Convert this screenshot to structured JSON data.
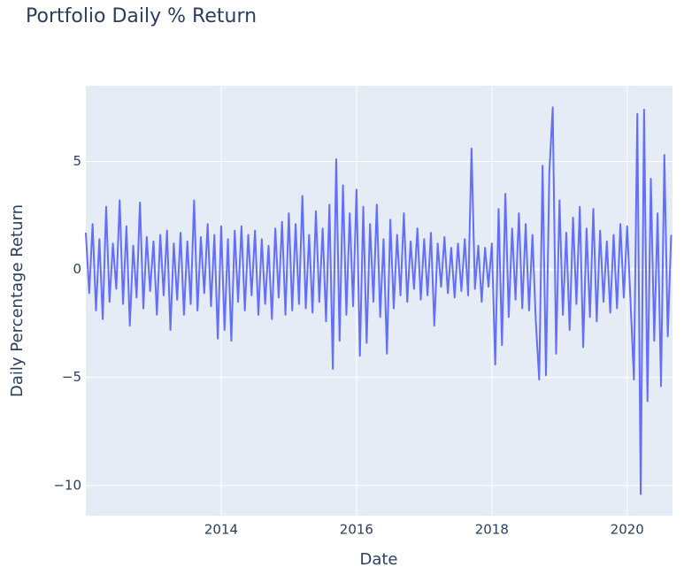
{
  "chart_data": {
    "type": "line",
    "title": "Portfolio Daily % Return",
    "x_label": "Date",
    "y_label": "Daily Percentage Return",
    "x": [
      2012.0,
      2012.05,
      2012.1,
      2012.15,
      2012.2,
      2012.25,
      2012.3,
      2012.35,
      2012.4,
      2012.45,
      2012.5,
      2012.55,
      2012.6,
      2012.65,
      2012.7,
      2012.75,
      2012.8,
      2012.85,
      2012.9,
      2012.95,
      2013.0,
      2013.05,
      2013.1,
      2013.15,
      2013.2,
      2013.25,
      2013.3,
      2013.35,
      2013.4,
      2013.45,
      2013.5,
      2013.55,
      2013.6,
      2013.65,
      2013.7,
      2013.75,
      2013.8,
      2013.85,
      2013.9,
      2013.95,
      2014.0,
      2014.05,
      2014.1,
      2014.15,
      2014.2,
      2014.25,
      2014.3,
      2014.35,
      2014.4,
      2014.45,
      2014.5,
      2014.55,
      2014.6,
      2014.65,
      2014.7,
      2014.75,
      2014.8,
      2014.85,
      2014.9,
      2014.95,
      2015.0,
      2015.05,
      2015.1,
      2015.15,
      2015.2,
      2015.25,
      2015.3,
      2015.35,
      2015.4,
      2015.45,
      2015.5,
      2015.55,
      2015.6,
      2015.65,
      2015.7,
      2015.75,
      2015.8,
      2015.85,
      2015.9,
      2015.95,
      2016.0,
      2016.05,
      2016.1,
      2016.15,
      2016.2,
      2016.25,
      2016.3,
      2016.35,
      2016.4,
      2016.45,
      2016.5,
      2016.55,
      2016.6,
      2016.65,
      2016.7,
      2016.75,
      2016.8,
      2016.85,
      2016.9,
      2016.95,
      2017.0,
      2017.05,
      2017.1,
      2017.15,
      2017.2,
      2017.25,
      2017.3,
      2017.35,
      2017.4,
      2017.45,
      2017.5,
      2017.55,
      2017.6,
      2017.65,
      2017.7,
      2017.75,
      2017.8,
      2017.85,
      2017.9,
      2017.95,
      2018.0,
      2018.05,
      2018.1,
      2018.15,
      2018.2,
      2018.25,
      2018.3,
      2018.35,
      2018.4,
      2018.45,
      2018.5,
      2018.55,
      2018.6,
      2018.65,
      2018.7,
      2018.75,
      2018.8,
      2018.85,
      2018.9,
      2018.95,
      2019.0,
      2019.05,
      2019.1,
      2019.15,
      2019.2,
      2019.25,
      2019.3,
      2019.35,
      2019.4,
      2019.45,
      2019.5,
      2019.55,
      2019.6,
      2019.65,
      2019.7,
      2019.75,
      2019.8,
      2019.85,
      2019.9,
      2019.95,
      2020.0,
      2020.05,
      2020.1,
      2020.15,
      2020.2,
      2020.25,
      2020.3,
      2020.35,
      2020.4,
      2020.45,
      2020.5,
      2020.55,
      2020.6,
      2020.65
    ],
    "series": [
      {
        "color": "#636efa",
        "values": [
          1.7,
          -1.1,
          2.1,
          -1.9,
          1.4,
          -2.3,
          2.9,
          -1.5,
          1.2,
          -0.9,
          3.2,
          -1.6,
          2.0,
          -2.6,
          1.1,
          -1.3,
          3.1,
          -1.8,
          1.5,
          -1.0,
          1.3,
          -2.1,
          1.6,
          -1.2,
          1.8,
          -2.8,
          1.2,
          -1.4,
          1.7,
          -2.1,
          1.3,
          -1.6,
          3.2,
          -1.9,
          1.5,
          -1.1,
          2.1,
          -1.7,
          1.6,
          -3.2,
          2.0,
          -2.8,
          1.4,
          -3.3,
          1.8,
          -1.5,
          2.0,
          -1.9,
          1.6,
          -1.2,
          1.8,
          -2.1,
          1.4,
          -1.6,
          1.1,
          -2.3,
          1.9,
          -1.3,
          2.2,
          -2.1,
          2.6,
          -1.9,
          2.1,
          -1.6,
          3.4,
          -1.8,
          1.6,
          -2.0,
          2.7,
          -1.5,
          1.9,
          -2.4,
          3.0,
          -4.6,
          5.1,
          -3.3,
          3.9,
          -2.1,
          2.6,
          -1.7,
          3.7,
          -4.0,
          2.9,
          -3.4,
          2.1,
          -1.5,
          3.0,
          -2.2,
          1.4,
          -3.9,
          2.3,
          -1.8,
          1.6,
          -1.2,
          2.6,
          -1.5,
          1.3,
          -0.9,
          1.9,
          -1.4,
          1.4,
          -1.2,
          1.7,
          -2.6,
          1.2,
          -0.8,
          1.5,
          -1.1,
          1.0,
          -1.3,
          1.2,
          -1.0,
          1.4,
          -1.2,
          5.6,
          -0.9,
          1.1,
          -1.5,
          1.0,
          -0.8,
          1.2,
          -4.4,
          2.8,
          -3.5,
          3.5,
          -2.2,
          1.9,
          -1.4,
          2.6,
          -1.8,
          2.1,
          -1.9,
          1.6,
          -2.4,
          -5.1,
          4.8,
          -4.9,
          4.5,
          7.5,
          -3.9,
          3.2,
          -2.1,
          1.7,
          -2.8,
          2.4,
          -1.6,
          2.9,
          -3.6,
          1.9,
          -2.2,
          2.8,
          -2.4,
          1.8,
          -1.5,
          1.3,
          -2.0,
          1.6,
          -1.8,
          2.1,
          -1.3,
          2.0,
          -1.5,
          -5.1,
          7.2,
          -10.4,
          7.4,
          -6.1,
          4.2,
          -3.3,
          2.6,
          -5.4,
          5.3,
          -3.1,
          1.6
        ]
      }
    ],
    "xlim": [
      2012.0,
      2020.67
    ],
    "ylim": [
      -11.4,
      8.5
    ],
    "xticks": [
      2014,
      2016,
      2018,
      2020
    ],
    "yticks": [
      {
        "value": -10,
        "label": "−10"
      },
      {
        "value": -5,
        "label": "−5"
      },
      0,
      5
    ],
    "grid": true
  }
}
